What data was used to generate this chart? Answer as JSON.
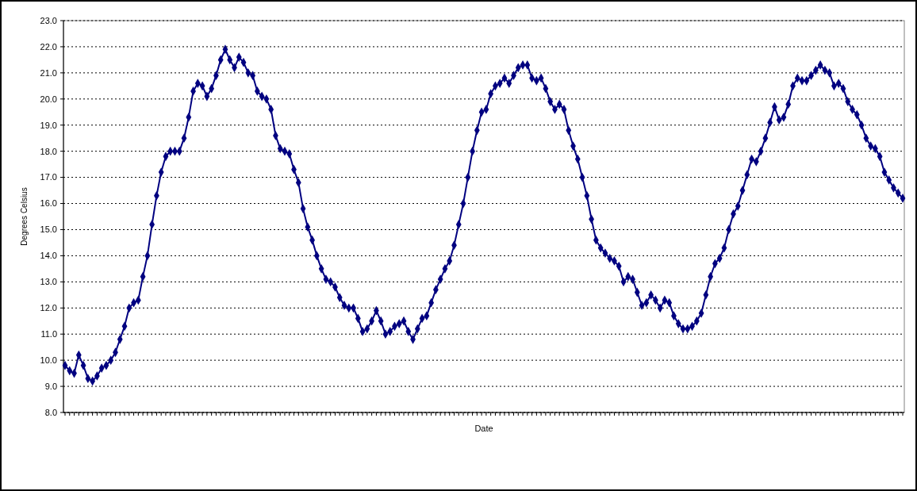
{
  "chart_data": {
    "type": "line",
    "xlabel": "Date",
    "ylabel": "Degrees Celsius",
    "categories": [
      null,
      null,
      null,
      null,
      null,
      null,
      null,
      null,
      null,
      null,
      null,
      null,
      null,
      null,
      null,
      null,
      null,
      null,
      null,
      null,
      null,
      null,
      null,
      null,
      null,
      null,
      null,
      null,
      null,
      null,
      null,
      null,
      null,
      null,
      null,
      null,
      null,
      null,
      null,
      null,
      null,
      null,
      null,
      null,
      null,
      null,
      null,
      null,
      null,
      null,
      null,
      null,
      null,
      null,
      null,
      null,
      null,
      null,
      null,
      null,
      null,
      null,
      null,
      null,
      null,
      null,
      null,
      null,
      null,
      null,
      null,
      null,
      null,
      null,
      null,
      null,
      null,
      null,
      null,
      null,
      null,
      null,
      null,
      null,
      null,
      null,
      null,
      null,
      null,
      null,
      null,
      null,
      null,
      null,
      null,
      null,
      null,
      null,
      null,
      null,
      null,
      null,
      null,
      null,
      null,
      null,
      null,
      null,
      null,
      null,
      null,
      null,
      null,
      null,
      null,
      null,
      null,
      null,
      null,
      null,
      null,
      null,
      null,
      null,
      null,
      null,
      null,
      null,
      null,
      null,
      null,
      null,
      null,
      null,
      null,
      null,
      null,
      null,
      null,
      null,
      null,
      null,
      null,
      null,
      null,
      null,
      null,
      null,
      null,
      null,
      null,
      null,
      null,
      null,
      null,
      null,
      null,
      null,
      null,
      null,
      null,
      null,
      null,
      null,
      null,
      null,
      null,
      null,
      null,
      null,
      null,
      null,
      null,
      null,
      null,
      null,
      null,
      null,
      null,
      null,
      null,
      null,
      null,
      null
    ],
    "series": [
      {
        "color": "#000080",
        "values": [
          9.8,
          9.6,
          9.5,
          10.2,
          9.8,
          9.3,
          9.2,
          9.4,
          9.7,
          9.8,
          10.0,
          10.3,
          10.8,
          11.3,
          12.0,
          12.2,
          12.3,
          13.2,
          14.0,
          15.2,
          16.3,
          17.2,
          17.8,
          18.0,
          18.0,
          18.0,
          18.5,
          19.3,
          20.3,
          20.6,
          20.5,
          20.1,
          20.4,
          20.9,
          21.5,
          21.9,
          21.5,
          21.2,
          21.6,
          21.4,
          21.0,
          20.9,
          20.3,
          20.1,
          20.0,
          19.6,
          18.6,
          18.1,
          18.0,
          17.9,
          17.3,
          16.8,
          15.8,
          15.1,
          14.6,
          14.0,
          13.5,
          13.1,
          13.0,
          12.8,
          12.4,
          12.1,
          12.0,
          12.0,
          11.6,
          11.1,
          11.2,
          11.5,
          11.9,
          11.5,
          11.0,
          11.1,
          11.3,
          11.4,
          11.5,
          11.1,
          10.8,
          11.2,
          11.6,
          11.7,
          12.2,
          12.7,
          13.1,
          13.5,
          13.8,
          14.4,
          15.2,
          16.0,
          17.0,
          18.0,
          18.8,
          19.5,
          19.6,
          20.2,
          20.5,
          20.6,
          20.8,
          20.6,
          20.9,
          21.2,
          21.3,
          21.3,
          20.8,
          20.7,
          20.8,
          20.4,
          19.9,
          19.6,
          19.8,
          19.6,
          18.8,
          18.2,
          17.7,
          17.0,
          16.3,
          15.4,
          14.6,
          14.3,
          14.1,
          13.9,
          13.8,
          13.6,
          13.0,
          13.2,
          13.1,
          12.6,
          12.1,
          12.2,
          12.5,
          12.3,
          12.0,
          12.3,
          12.2,
          11.7,
          11.4,
          11.2,
          11.2,
          11.3,
          11.5,
          11.8,
          12.5,
          13.2,
          13.7,
          13.9,
          14.3,
          15.0,
          15.6,
          15.9,
          16.5,
          17.1,
          17.7,
          17.6,
          18.0,
          18.5,
          19.1,
          19.7,
          19.2,
          19.3,
          19.8,
          20.5,
          20.8,
          20.7,
          20.7,
          20.9,
          21.1,
          21.3,
          21.1,
          21.0,
          20.5,
          20.6,
          20.4,
          19.9,
          19.6,
          19.4,
          19.0,
          18.5,
          18.2,
          18.1,
          17.8,
          17.2,
          16.9,
          16.6,
          16.4,
          16.2
        ]
      }
    ],
    "ylim": [
      8,
      23
    ],
    "yticks": [
      {
        "value": 8,
        "label": "8.0"
      },
      {
        "value": 9,
        "label": "9.0"
      },
      {
        "value": 10,
        "label": "10.0"
      },
      {
        "value": 11,
        "label": "11.0"
      },
      {
        "value": 12,
        "label": "12.0"
      },
      {
        "value": 13,
        "label": "13.0"
      },
      {
        "value": 14,
        "label": "14.0"
      },
      {
        "value": 15,
        "label": "15.0"
      },
      {
        "value": 16,
        "label": "16.0"
      },
      {
        "value": 17,
        "label": "17.0"
      },
      {
        "value": 18,
        "label": "18.0"
      },
      {
        "value": 19,
        "label": "19.0"
      },
      {
        "value": 20,
        "label": "20.0"
      },
      {
        "value": 21,
        "label": "21.0"
      },
      {
        "value": 22,
        "label": "22.0"
      },
      {
        "value": 23,
        "label": "23.0"
      }
    ],
    "grid": "y",
    "marker": "diamond",
    "line_style": "solid",
    "tick_labels": "y"
  }
}
